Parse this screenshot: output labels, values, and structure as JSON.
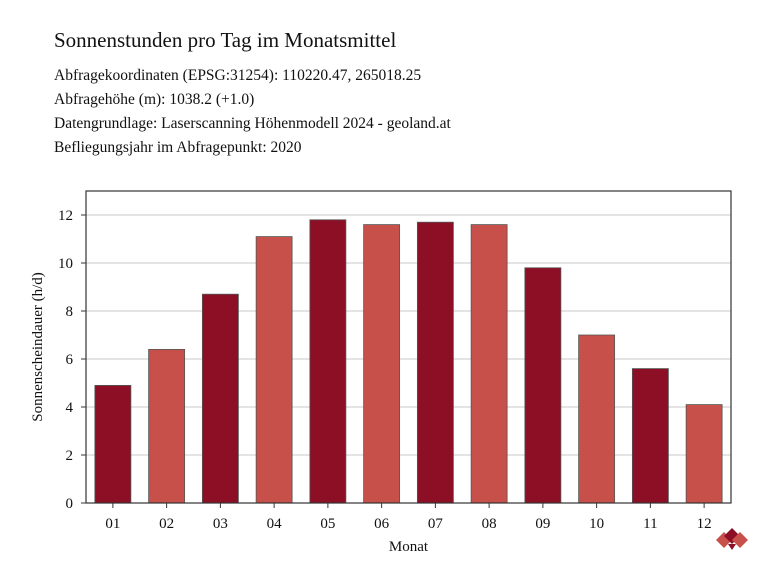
{
  "header": {
    "title": "Sonnenstunden pro Tag im Monatsmittel",
    "info": [
      "Abfragekoordinaten (EPSG:31254): 110220.47, 265018.25",
      "Abfragehöhe (m): 1038.2 (+1.0)",
      "Datengrundlage: Laserscanning Höhenmodell 2024 - geoland.at",
      "Befliegungsjahr im Abfragepunkt: 2020"
    ]
  },
  "chart_data": {
    "type": "bar",
    "title": "Sonnenstunden pro Tag im Monatsmittel",
    "xlabel": "Monat",
    "ylabel": "Sonnenscheindauer (h/d)",
    "categories": [
      "01",
      "02",
      "03",
      "04",
      "05",
      "06",
      "07",
      "08",
      "09",
      "10",
      "11",
      "12"
    ],
    "values": [
      4.9,
      6.4,
      8.7,
      11.1,
      11.8,
      11.6,
      11.7,
      11.6,
      9.8,
      7.0,
      5.6,
      4.1
    ],
    "colors": [
      "#8c0f26",
      "#c8504a",
      "#8c0f26",
      "#c8504a",
      "#8c0f26",
      "#c8504a",
      "#8c0f26",
      "#c8504a",
      "#8c0f26",
      "#c8504a",
      "#8c0f26",
      "#c8504a"
    ],
    "ylim": [
      0,
      13
    ],
    "yticks": [
      0,
      2,
      4,
      6,
      8,
      10,
      12
    ],
    "grid": true
  }
}
